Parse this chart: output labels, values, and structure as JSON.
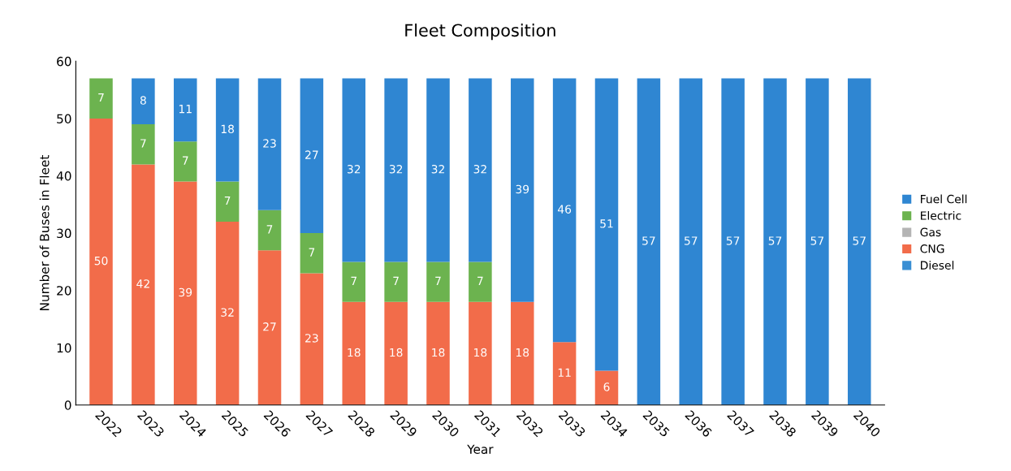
{
  "chart_data": {
    "type": "bar",
    "title": "Fleet Composition",
    "xlabel": "Year",
    "ylabel": "Number of Buses in Fleet",
    "categories": [
      "2022",
      "2023",
      "2024",
      "2025",
      "2026",
      "2027",
      "2028",
      "2029",
      "2030",
      "2031",
      "2032",
      "2033",
      "2034",
      "2035",
      "2036",
      "2037",
      "2038",
      "2039",
      "2040"
    ],
    "stacked": true,
    "ylim": [
      0,
      60
    ],
    "yticks": [
      0,
      10,
      20,
      30,
      40,
      50,
      60
    ],
    "grid": false,
    "legend": "right",
    "series": [
      {
        "name": "Diesel",
        "color": "#3a8fd4",
        "values": [
          0,
          0,
          0,
          0,
          0,
          0,
          0,
          0,
          0,
          0,
          0,
          0,
          0,
          0,
          0,
          0,
          0,
          0,
          0
        ],
        "value_labels": [
          null,
          null,
          null,
          null,
          null,
          null,
          null,
          null,
          null,
          null,
          null,
          null,
          null,
          null,
          null,
          null,
          null,
          null,
          null
        ]
      },
      {
        "name": "CNG",
        "color": "#f26c4a",
        "values": [
          50,
          42,
          39,
          32,
          27,
          23,
          18,
          18,
          18,
          18,
          18,
          11,
          6,
          0,
          0,
          0,
          0,
          0,
          0
        ],
        "value_labels": [
          "50",
          "42",
          "39",
          "32",
          "27",
          "23",
          "18",
          "18",
          "18",
          "18",
          "18",
          "11",
          "6",
          null,
          null,
          null,
          null,
          null,
          null
        ]
      },
      {
        "name": "Gas",
        "color": "#b4b4b4",
        "values": [
          0,
          0,
          0,
          0,
          0,
          0,
          0,
          0,
          0,
          0,
          0,
          0,
          0,
          0,
          0,
          0,
          0,
          0,
          0
        ],
        "value_labels": [
          null,
          null,
          null,
          null,
          null,
          null,
          null,
          null,
          null,
          null,
          null,
          null,
          null,
          null,
          null,
          null,
          null,
          null,
          null
        ]
      },
      {
        "name": "Electric",
        "color": "#6cb34f",
        "values": [
          7,
          7,
          7,
          7,
          7,
          7,
          7,
          7,
          7,
          7,
          0,
          0,
          0,
          0,
          0,
          0,
          0,
          0,
          0
        ],
        "value_labels": [
          "7",
          "7",
          "7",
          "7",
          "7",
          "7",
          "7",
          "7",
          "7",
          "7",
          null,
          null,
          null,
          null,
          null,
          null,
          null,
          null,
          null
        ]
      },
      {
        "name": "Fuel Cell",
        "color": "#2f86d2",
        "values": [
          0,
          8,
          11,
          18,
          23,
          27,
          32,
          32,
          32,
          32,
          39,
          46,
          51,
          57,
          57,
          57,
          57,
          57,
          57
        ],
        "value_labels": [
          null,
          "8",
          "11",
          "18",
          "23",
          "27",
          "32",
          "32",
          "32",
          "32",
          "39",
          "46",
          "51",
          "57",
          "57",
          "57",
          "57",
          "57",
          "57"
        ]
      }
    ]
  }
}
